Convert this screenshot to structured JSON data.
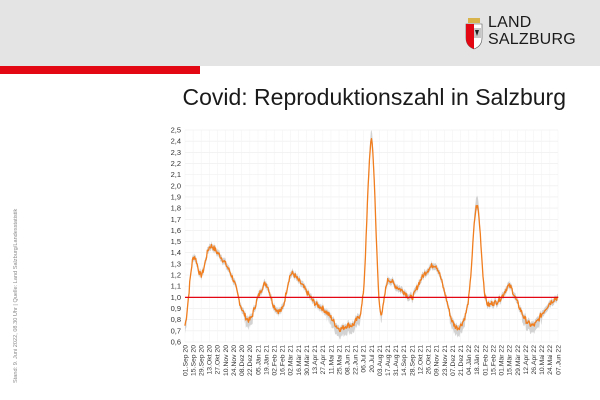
{
  "header": {
    "logo_line1": "LAND",
    "logo_line2": "SALZBURG",
    "accent_color": "#e30613",
    "logo_icon": "salzburg-coat-of-arms-icon"
  },
  "title": "Covid: Reproduktionszahl in Salzburg",
  "side_note": "Stand: 9. Juni 2022, 08.30 Uhr | Quelle: Land Salzburg/Landesstatistik",
  "chart_data": {
    "type": "line",
    "title": "Covid: Reproduktionszahl in Salzburg",
    "xlabel": "",
    "ylabel": "",
    "ylim": [
      0.6,
      2.5
    ],
    "yticks": [
      "0,6",
      "0,7",
      "0,8",
      "0,9",
      "1,0",
      "1,1",
      "1,2",
      "1,3",
      "1,4",
      "1,5",
      "1,6",
      "1,7",
      "1,8",
      "1,9",
      "2,0",
      "2,1",
      "2,2",
      "2,3",
      "2,4",
      "2,5"
    ],
    "grid": true,
    "reference_line": {
      "y": 1.0,
      "color": "#e30613"
    },
    "line_color": "#f07d1e",
    "band_color": "#c8c8c8",
    "categories": [
      "01.Sep 20",
      "15.Sep 20",
      "29.Sep 20",
      "13.Okt 20",
      "27.Okt 20",
      "10.Nov 20",
      "24.Nov 20",
      "08.Dez 20",
      "22.Dez 20",
      "05.Jän 21",
      "19.Jän 21",
      "02.Feb 21",
      "16.Feb 21",
      "02.Mär 21",
      "16.Mär 21",
      "30.Mär 21",
      "13.Apr 21",
      "27.Apr 21",
      "11.Mai 21",
      "25.Mai 21",
      "08.Jun 21",
      "22.Jun 21",
      "06.Jul 21",
      "20.Jul 21",
      "03.Aug 21",
      "17.Aug 21",
      "31.Aug 21",
      "14.Sep 21",
      "28.Sep 21",
      "12.Okt 21",
      "26.Okt 21",
      "09.Nov 21",
      "23.Nov 21",
      "07.Dez 21",
      "21.Dez 21",
      "04.Jän 22",
      "18.Jän 22",
      "01.Feb 22",
      "15.Feb 22",
      "01.Mär 22",
      "15.Mär 22",
      "29.Mär 22",
      "12.Apr 22",
      "26.Apr 22",
      "10.Mai 22",
      "24.Mai 22",
      "07.Jun 22"
    ],
    "series": [
      {
        "values": [
          0.75,
          1.35,
          1.2,
          1.45,
          1.4,
          1.3,
          1.15,
          0.9,
          0.8,
          1.0,
          1.12,
          0.92,
          0.9,
          1.2,
          1.15,
          1.05,
          0.95,
          0.9,
          0.82,
          0.72,
          0.75,
          0.78,
          1.05,
          2.4,
          0.92,
          1.15,
          1.1,
          1.05,
          1.0,
          1.15,
          1.25,
          1.28,
          1.05,
          0.78,
          0.75,
          1.0,
          1.82,
          1.02,
          0.95,
          1.0,
          1.1,
          0.95,
          0.8,
          0.75,
          0.85,
          0.95,
          1.0
        ]
      }
    ]
  }
}
